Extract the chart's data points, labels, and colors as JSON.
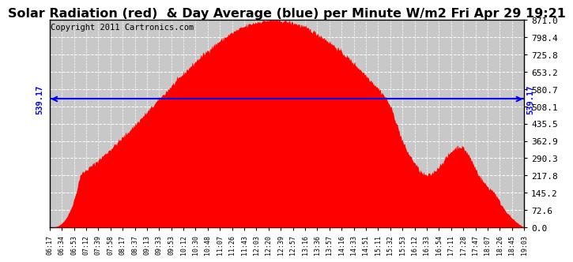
{
  "title": "Solar Radiation (red)  & Day Average (blue) per Minute W/m2 Fri Apr 29 19:21",
  "copyright": "Copyright 2011 Cartronics.com",
  "day_average": 539.17,
  "y_max": 871.0,
  "y_min": 0.0,
  "y_ticks": [
    0.0,
    72.6,
    145.2,
    217.8,
    290.3,
    362.9,
    435.5,
    508.1,
    580.7,
    653.2,
    725.8,
    798.4,
    871.0
  ],
  "x_tick_labels": [
    "06:17",
    "06:34",
    "06:53",
    "07:12",
    "07:39",
    "07:58",
    "08:17",
    "08:37",
    "09:13",
    "09:33",
    "09:53",
    "10:12",
    "10:30",
    "10:48",
    "11:07",
    "11:26",
    "11:43",
    "12:03",
    "12:20",
    "12:39",
    "12:57",
    "13:16",
    "13:36",
    "13:57",
    "14:16",
    "14:33",
    "14:51",
    "15:11",
    "15:32",
    "15:53",
    "16:12",
    "16:33",
    "16:54",
    "17:11",
    "17:28",
    "17:47",
    "18:07",
    "18:26",
    "18:45",
    "19:03"
  ],
  "fill_color": "#FF0000",
  "line_color": "#0000FF",
  "background_color": "#FFFFFF",
  "plot_background": "#C8C8C8",
  "grid_color": "#FFFFFF",
  "title_fontsize": 11.5,
  "copyright_fontsize": 7.5,
  "ytick_fontsize": 8,
  "xtick_fontsize": 6
}
